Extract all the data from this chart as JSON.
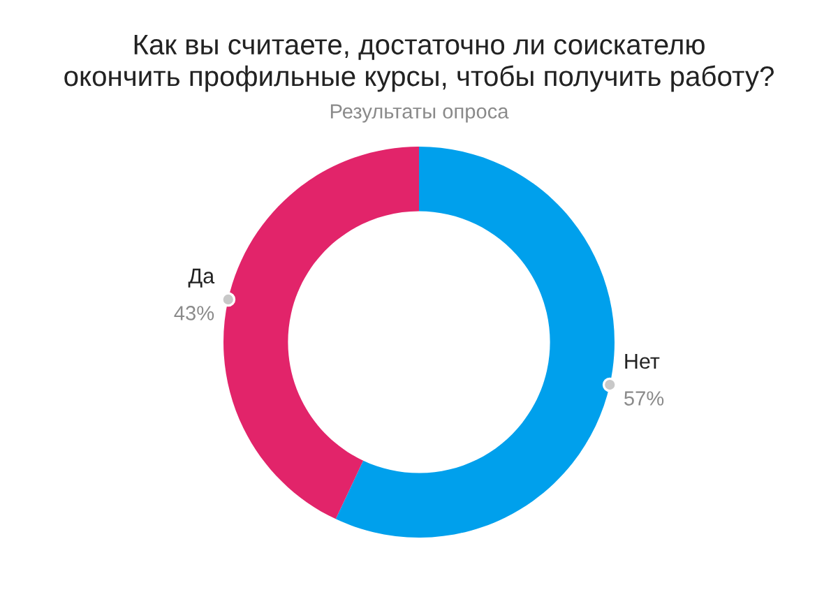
{
  "chart_data": {
    "type": "donut",
    "title": "Как вы считаете, достаточно ли соискателю\nокончить профильные курсы, чтобы получить работу?",
    "subtitle": "Результаты опроса",
    "categories": [
      "Нет",
      "Да"
    ],
    "values": [
      57,
      43
    ],
    "value_labels": [
      "57%",
      "43%"
    ],
    "colors": [
      "#00a0ec",
      "#e2246a"
    ]
  }
}
